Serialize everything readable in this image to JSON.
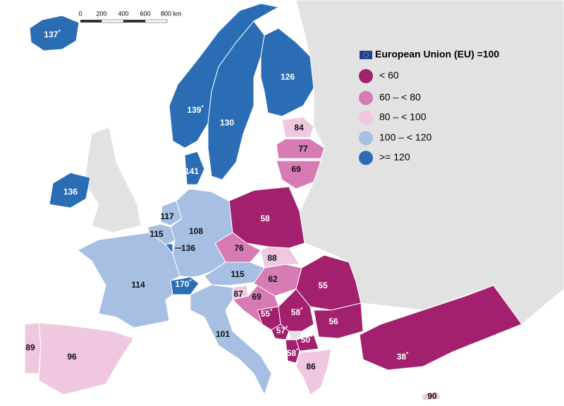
{
  "scale": {
    "labels": [
      "0",
      "200",
      "400",
      "600",
      "800 km"
    ]
  },
  "legend": {
    "title": "European Union (EU) =100",
    "items": [
      {
        "label": "< 60",
        "color": "#a3206e"
      },
      {
        "label": "60 – < 80",
        "color": "#d77bb5"
      },
      {
        "label": "80 – < 100",
        "color": "#efc7de"
      },
      {
        "label": "100 – < 120",
        "color": "#a7bfe3"
      },
      {
        "label": ">= 120",
        "color": "#2a6db5"
      }
    ]
  },
  "map": {
    "regions": [
      {
        "value": 137,
        "mark": "*",
        "color": "#2a6db5"
      },
      {
        "value": 139,
        "mark": "*",
        "color": "#2a6db5"
      },
      {
        "value": 130,
        "color": "#2a6db5"
      },
      {
        "value": 126,
        "color": "#2a6db5"
      },
      {
        "value": 84,
        "color": "#efc7de"
      },
      {
        "value": 77,
        "color": "#d77bb5"
      },
      {
        "value": 69,
        "color": "#d77bb5"
      },
      {
        "value": 141,
        "color": "#2a6db5"
      },
      {
        "value": 136,
        "color": "#2a6db5"
      },
      {
        "value": 117,
        "color": "#a7bfe3"
      },
      {
        "value": 115,
        "color": "#a7bfe3"
      },
      {
        "value": 108,
        "color": "#a7bfe3"
      },
      {
        "value": 136,
        "color": "#2a6db5"
      },
      {
        "value": 58,
        "color": "#a3206e"
      },
      {
        "value": 76,
        "color": "#d77bb5"
      },
      {
        "value": 88,
        "color": "#efc7de"
      },
      {
        "value": 115,
        "color": "#a7bfe3"
      },
      {
        "value": 62,
        "color": "#d77bb5"
      },
      {
        "value": 55,
        "color": "#a3206e"
      },
      {
        "value": 114,
        "color": "#a7bfe3"
      },
      {
        "value": 170,
        "mark": "*",
        "color": "#2a6db5"
      },
      {
        "value": 87,
        "color": "#efc7de"
      },
      {
        "value": 69,
        "color": "#d77bb5"
      },
      {
        "value": 55,
        "mark": "*",
        "color": "#a3206e"
      },
      {
        "value": 58,
        "mark": "*",
        "color": "#a3206e"
      },
      {
        "value": 57,
        "mark": "*",
        "color": "#a3206e"
      },
      {
        "value": 56,
        "color": "#a3206e"
      },
      {
        "value": 50,
        "mark": "*",
        "color": "#a3206e"
      },
      {
        "value": 58,
        "mark": "*",
        "color": "#a3206e"
      },
      {
        "value": 38,
        "mark": "*",
        "color": "#a3206e"
      },
      {
        "value": 101,
        "color": "#a7bfe3"
      },
      {
        "value": 89,
        "color": "#efc7de"
      },
      {
        "value": 96,
        "color": "#efc7de"
      },
      {
        "value": 86,
        "color": "#efc7de"
      },
      {
        "value": 90,
        "color": "#efc7de"
      }
    ]
  }
}
